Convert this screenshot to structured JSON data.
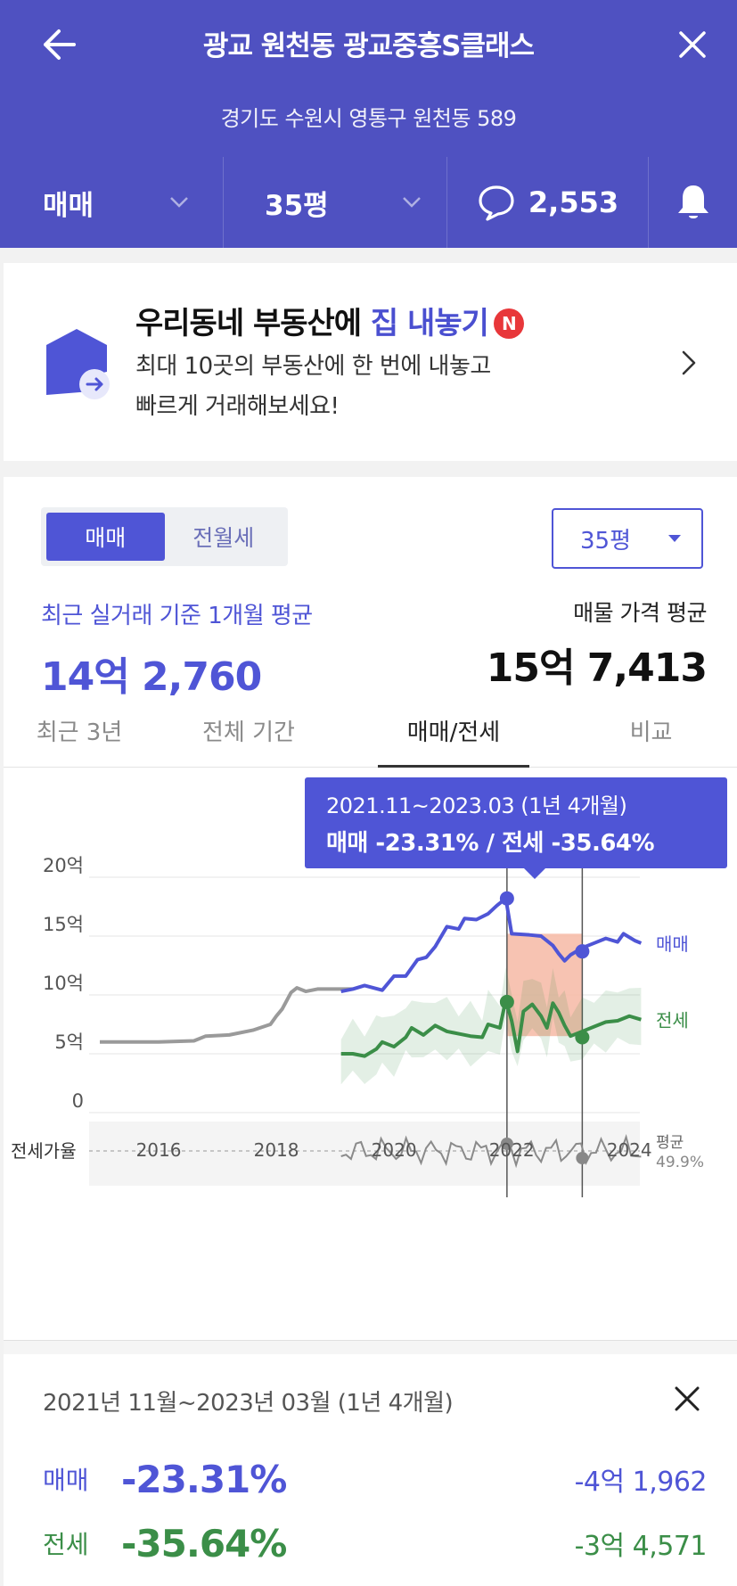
{
  "header": {
    "title": "광교 원천동 광교중흥S클래스",
    "address": "경기도 수원시 영통구 원천동 589",
    "trade_type": "매매",
    "size": "35평",
    "comment_count": "2,553"
  },
  "promo": {
    "title_part1": "우리동네 부동산에 ",
    "title_highlight": "집 내놓기",
    "badge": "N",
    "desc_line1": "최대 10곳의 부동산에 한 번에 내놓고",
    "desc_line2": "빠르게 거래해보세요!"
  },
  "panel": {
    "seg_sale": "매매",
    "seg_rent": "전월세",
    "size_select": "35평",
    "recent_label": "최근 실거래 기준 1개월 평균",
    "recent_value": "14억 2,760",
    "listing_label": "매물 가격 평균",
    "listing_value": "15억 7,413"
  },
  "tabs": [
    "최근 3년",
    "전체 기간",
    "매매/전세",
    "비교"
  ],
  "tooltip": {
    "line1": "2021.11~2023.03 (1년 4개월)",
    "line2": "매매 -23.31%  /  전세 -35.64%"
  },
  "summary": {
    "period": "2021년 11월~2023년 03월 (1년 4개월)",
    "rows": [
      {
        "label": "매매",
        "pct": "-23.31%",
        "amount": "-4억 1,962"
      },
      {
        "label": "전세",
        "pct": "-35.64%",
        "amount": "-3억 4,571"
      }
    ]
  },
  "colors": {
    "brand": "#4f51c1",
    "sale": "#4f55d6",
    "jeonse": "#3b8e48",
    "history": "#9a9a9a",
    "range_fill": "#f6b8a4"
  },
  "icons": {
    "back": "arrow-left-icon",
    "close": "close-icon",
    "chevron": "chevron-down-icon",
    "chat": "speech-bubble-icon",
    "bell": "bell-icon",
    "house": "house-arrow-icon"
  },
  "chart_data": {
    "type": "line",
    "x_ticks": [
      "2016",
      "2018",
      "2020",
      "2022",
      "2024"
    ],
    "y_ticks": [
      "20억",
      "15억",
      "10억",
      "5억",
      "0"
    ],
    "ylim": [
      0,
      20
    ],
    "y_unit": "억",
    "grid": true,
    "series": [
      {
        "name": "매매",
        "label": "매매",
        "points": [
          [
            2019.1,
            10.3
          ],
          [
            2019.3,
            10.5
          ],
          [
            2019.5,
            10.8
          ],
          [
            2019.8,
            10.4
          ],
          [
            2020.0,
            11.6
          ],
          [
            2020.2,
            11.6
          ],
          [
            2020.4,
            13.0
          ],
          [
            2020.55,
            13.2
          ],
          [
            2020.7,
            14.1
          ],
          [
            2020.9,
            15.8
          ],
          [
            2021.1,
            15.6
          ],
          [
            2021.2,
            16.5
          ],
          [
            2021.4,
            16.4
          ],
          [
            2021.6,
            16.9
          ],
          [
            2021.75,
            17.6
          ],
          [
            2021.9,
            18.2
          ],
          [
            2022.0,
            15.2
          ],
          [
            2022.3,
            15.1
          ],
          [
            2022.5,
            15.0
          ],
          [
            2022.7,
            14.2
          ],
          [
            2022.8,
            13.5
          ],
          [
            2022.9,
            12.9
          ],
          [
            2023.0,
            13.4
          ],
          [
            2023.2,
            14.0
          ],
          [
            2023.4,
            14.4
          ],
          [
            2023.6,
            14.8
          ],
          [
            2023.8,
            14.5
          ],
          [
            2023.9,
            15.2
          ],
          [
            2024.1,
            14.6
          ],
          [
            2024.2,
            14.4
          ]
        ]
      },
      {
        "name": "전세",
        "label": "전세",
        "points": [
          [
            2019.1,
            5.0
          ],
          [
            2019.3,
            5.0
          ],
          [
            2019.5,
            4.8
          ],
          [
            2019.7,
            5.4
          ],
          [
            2019.8,
            6.0
          ],
          [
            2020.0,
            5.6
          ],
          [
            2020.2,
            6.4
          ],
          [
            2020.3,
            7.2
          ],
          [
            2020.5,
            6.6
          ],
          [
            2020.7,
            7.4
          ],
          [
            2020.9,
            6.9
          ],
          [
            2021.1,
            6.7
          ],
          [
            2021.3,
            6.5
          ],
          [
            2021.5,
            6.4
          ],
          [
            2021.6,
            7.5
          ],
          [
            2021.8,
            7.2
          ],
          [
            2021.9,
            9.6
          ],
          [
            2022.0,
            7.8
          ],
          [
            2022.1,
            5.2
          ],
          [
            2022.2,
            8.6
          ],
          [
            2022.35,
            9.2
          ],
          [
            2022.5,
            8.2
          ],
          [
            2022.6,
            7.2
          ],
          [
            2022.7,
            9.3
          ],
          [
            2022.8,
            8.5
          ],
          [
            2022.9,
            7.4
          ],
          [
            2023.0,
            6.5
          ],
          [
            2023.2,
            6.9
          ],
          [
            2023.4,
            7.3
          ],
          [
            2023.6,
            7.7
          ],
          [
            2023.8,
            7.8
          ],
          [
            2024.0,
            8.2
          ],
          [
            2024.2,
            7.9
          ]
        ]
      },
      {
        "name": "history",
        "label": "",
        "points": [
          [
            2015.0,
            6.0
          ],
          [
            2016.0,
            6.0
          ],
          [
            2016.6,
            6.1
          ],
          [
            2016.8,
            6.5
          ],
          [
            2017.2,
            6.6
          ],
          [
            2017.6,
            7.0
          ],
          [
            2017.9,
            7.5
          ],
          [
            2018.0,
            8.2
          ],
          [
            2018.1,
            8.8
          ],
          [
            2018.25,
            10.2
          ],
          [
            2018.35,
            10.6
          ],
          [
            2018.5,
            10.3
          ],
          [
            2018.7,
            10.5
          ],
          [
            2019.0,
            10.5
          ],
          [
            2019.3,
            10.5
          ]
        ]
      }
    ],
    "jeonse_ratio_avg": "평균 49.9%",
    "jeonse_ratio_label": "전세가율",
    "highlight_range": [
      "2021.11",
      "2023.03"
    ]
  }
}
